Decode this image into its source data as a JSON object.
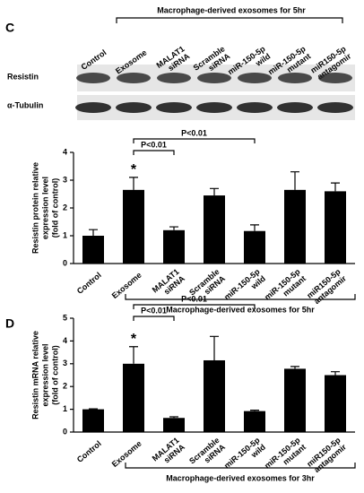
{
  "blot": {
    "panel_label": "C",
    "header": "Macrophage-derived exosomes for 5hr",
    "lanes": [
      [
        "Control"
      ],
      [
        "Exosome"
      ],
      [
        "MALAT1",
        "siRNA"
      ],
      [
        "Scramble",
        "siRNA"
      ],
      [
        "miR-150-5p",
        "wild"
      ],
      [
        "miR-150-5p",
        "mutant"
      ],
      [
        "miR150-5p",
        "antagomir"
      ]
    ],
    "rows": [
      "Resistin",
      "α-Tubulin"
    ]
  },
  "chart_data": [
    {
      "type": "bar",
      "y_label": [
        "Resistin protein relative",
        "expression level",
        "(fold of control)"
      ],
      "categories": [
        [
          "Control"
        ],
        [
          "Exosome"
        ],
        [
          "MALAT1",
          "siRNA"
        ],
        [
          "Scramble",
          "siRNA"
        ],
        [
          "miR-150-5p",
          "wild"
        ],
        [
          "miR-150-5p",
          "mutant"
        ],
        [
          "miR150-5p",
          "antagomir"
        ]
      ],
      "values": [
        1.0,
        2.65,
        1.2,
        2.45,
        1.17,
        2.65,
        2.6
      ],
      "errors": [
        0.22,
        0.45,
        0.12,
        0.25,
        0.22,
        0.65,
        0.3
      ],
      "color": "#000000",
      "ylim": [
        0,
        4
      ],
      "yticks": [
        0,
        1,
        2,
        3,
        4
      ],
      "annotations": [
        "*",
        "P<0.01",
        "P<0.01"
      ],
      "bracket_label": "Macrophage-derived exosomes for 5hr"
    },
    {
      "type": "bar",
      "panel_label": "D",
      "y_label": [
        "Resistin mRNA relative",
        "expression level",
        "(fold of control)"
      ],
      "categories": [
        [
          "Control"
        ],
        [
          "Exosome"
        ],
        [
          "MALAT1",
          "siRNA"
        ],
        [
          "Scramble",
          "siRNA"
        ],
        [
          "miR-150-5p",
          "wild"
        ],
        [
          "miR-150-5p",
          "mutant"
        ],
        [
          "miR150-5p",
          "antagomir"
        ]
      ],
      "values": [
        1.0,
        3.0,
        0.62,
        3.15,
        0.92,
        2.78,
        2.5
      ],
      "errors": [
        0.02,
        0.75,
        0.05,
        1.05,
        0.04,
        0.1,
        0.15
      ],
      "color": "#000000",
      "ylim": [
        0,
        5
      ],
      "yticks": [
        0,
        1,
        2,
        3,
        4,
        5
      ],
      "annotations": [
        "*",
        "P<0.01",
        "P<0.01"
      ],
      "bracket_label": "Macrophage-derived exosomes for 3hr"
    }
  ]
}
